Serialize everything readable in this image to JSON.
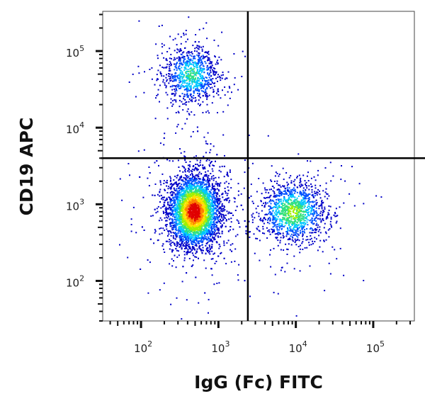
{
  "chart_data": {
    "type": "scatter",
    "subtype": "flow-cytometry-density-dot-plot",
    "xlabel": "IgG (Fc) FITC",
    "ylabel": "CD19 APC",
    "xscale": "log",
    "yscale": "log",
    "xlim": [
      32,
      340000
    ],
    "ylim": [
      30,
      330000
    ],
    "x_ticks": [
      {
        "base": "10",
        "exp": "2",
        "value": 100
      },
      {
        "base": "10",
        "exp": "3",
        "value": 1000
      },
      {
        "base": "10",
        "exp": "4",
        "value": 10000
      },
      {
        "base": "10",
        "exp": "5",
        "value": 100000
      }
    ],
    "y_ticks": [
      {
        "base": "10",
        "exp": "2",
        "value": 100
      },
      {
        "base": "10",
        "exp": "3",
        "value": 1000
      },
      {
        "base": "10",
        "exp": "4",
        "value": 10000
      },
      {
        "base": "10",
        "exp": "5",
        "value": 100000
      }
    ],
    "quadrant_gate": {
      "x": 2400,
      "y": 4000
    },
    "grid": false,
    "legend": "none",
    "colormap": [
      "#0000c8",
      "#0050ff",
      "#00c8ff",
      "#30e080",
      "#a0f000",
      "#ffe000",
      "#ff8000",
      "#e00000"
    ],
    "populations": [
      {
        "quadrant": "upper-left",
        "center": [
          440,
          49000
        ],
        "spread_decades": [
          0.18,
          0.2
        ],
        "count": 900
      },
      {
        "quadrant": "lower-left",
        "center": [
          480,
          820
        ],
        "spread_decades": [
          0.17,
          0.24
        ],
        "count": 4200
      },
      {
        "quadrant": "lower-right",
        "center": [
          9000,
          800
        ],
        "spread_decades": [
          0.22,
          0.2
        ],
        "count": 1300
      }
    ]
  }
}
